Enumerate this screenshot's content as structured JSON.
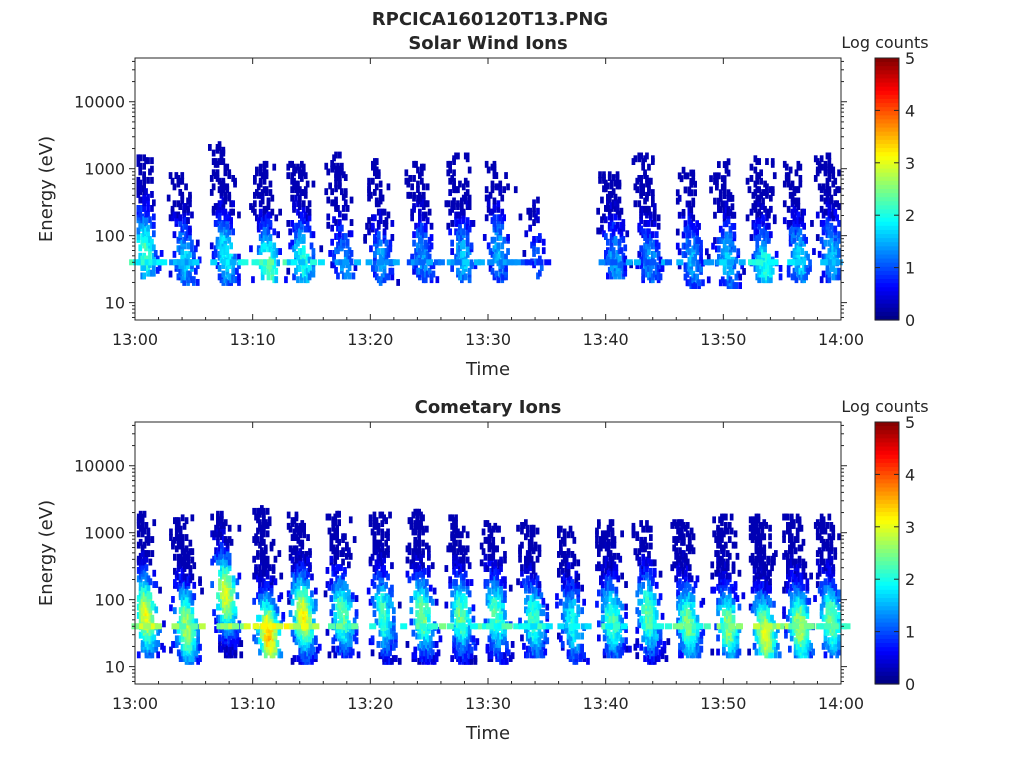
{
  "figure_title": "RPCICA160120T13.PNG",
  "chart_data": [
    {
      "type": "heatmap",
      "title": "Solar Wind Ions",
      "xlabel": "Time",
      "ylabel": "Energy (eV)",
      "y_scale": "log",
      "ylim": [
        5.5,
        45000
      ],
      "xlim": [
        "13:00",
        "14:00"
      ],
      "x_ticks": [
        "13:00",
        "13:10",
        "13:20",
        "13:30",
        "13:40",
        "13:50",
        "14:00"
      ],
      "y_ticks": [
        "10",
        "100",
        "1000",
        "10000"
      ],
      "colorbar": {
        "label": "Log counts",
        "range": [
          0,
          5
        ],
        "ticks": [
          "0",
          "1",
          "2",
          "3",
          "4",
          "5"
        ],
        "colormap": "jet"
      },
      "bursts": [
        {
          "t": 0.9,
          "e_low": 25,
          "e_high": 1500,
          "peak_e": 60,
          "peak_level": 2.2,
          "density": 0.55
        },
        {
          "t": 4.3,
          "e_low": 20,
          "e_high": 800,
          "peak_e": 45,
          "peak_level": 1.6,
          "density": 0.55
        },
        {
          "t": 7.8,
          "e_low": 20,
          "e_high": 2500,
          "peak_e": 55,
          "peak_level": 1.9,
          "density": 0.6
        },
        {
          "t": 11.3,
          "e_low": 22,
          "e_high": 1200,
          "peak_e": 35,
          "peak_level": 2.4,
          "density": 0.55
        },
        {
          "t": 14.3,
          "e_low": 22,
          "e_high": 1200,
          "peak_e": 45,
          "peak_level": 2.0,
          "density": 0.6
        },
        {
          "t": 17.7,
          "e_low": 25,
          "e_high": 1600,
          "peak_e": 40,
          "peak_level": 1.4,
          "density": 0.45
        },
        {
          "t": 21.0,
          "e_low": 20,
          "e_high": 1600,
          "peak_e": 40,
          "peak_level": 1.4,
          "density": 0.45
        },
        {
          "t": 24.5,
          "e_low": 22,
          "e_high": 1200,
          "peak_e": 50,
          "peak_level": 1.4,
          "density": 0.5
        },
        {
          "t": 27.9,
          "e_low": 22,
          "e_high": 1600,
          "peak_e": 45,
          "peak_level": 1.6,
          "density": 0.5
        },
        {
          "t": 31.0,
          "e_low": 20,
          "e_high": 1200,
          "peak_e": 60,
          "peak_level": 1.5,
          "density": 0.45
        },
        {
          "t": 34.2,
          "e_low": 25,
          "e_high": 500,
          "peak_e": 40,
          "peak_level": 1.0,
          "density": 0.2
        },
        {
          "t": 40.8,
          "e_low": 25,
          "e_high": 900,
          "peak_e": 45,
          "peak_level": 1.4,
          "density": 0.55
        },
        {
          "t": 43.8,
          "e_low": 22,
          "e_high": 1600,
          "peak_e": 40,
          "peak_level": 1.4,
          "density": 0.55
        },
        {
          "t": 47.4,
          "e_low": 18,
          "e_high": 1000,
          "peak_e": 45,
          "peak_level": 1.5,
          "density": 0.55
        },
        {
          "t": 50.4,
          "e_low": 18,
          "e_high": 1300,
          "peak_e": 45,
          "peak_level": 1.6,
          "density": 0.55
        },
        {
          "t": 53.5,
          "e_low": 22,
          "e_high": 1600,
          "peak_e": 35,
          "peak_level": 2.0,
          "density": 0.55
        },
        {
          "t": 56.5,
          "e_low": 22,
          "e_high": 1200,
          "peak_e": 45,
          "peak_level": 1.7,
          "density": 0.55
        },
        {
          "t": 59.3,
          "e_low": 22,
          "e_high": 1800,
          "peak_e": 50,
          "peak_level": 1.6,
          "density": 0.55
        }
      ]
    },
    {
      "type": "heatmap",
      "title": "Cometary Ions",
      "xlabel": "Time",
      "ylabel": "Energy (eV)",
      "y_scale": "log",
      "ylim": [
        5.5,
        45000
      ],
      "xlim": [
        "13:00",
        "14:00"
      ],
      "x_ticks": [
        "13:00",
        "13:10",
        "13:20",
        "13:30",
        "13:40",
        "13:50",
        "14:00"
      ],
      "y_ticks": [
        "10",
        "100",
        "1000",
        "10000"
      ],
      "colorbar": {
        "label": "Log counts",
        "range": [
          0,
          5
        ],
        "ticks": [
          "0",
          "1",
          "2",
          "3",
          "4",
          "5"
        ],
        "colormap": "jet"
      },
      "bursts": [
        {
          "t": 1.1,
          "e_low": 15,
          "e_high": 2000,
          "peak_e": 60,
          "peak_level": 3.0,
          "density": 0.85
        },
        {
          "t": 4.5,
          "e_low": 12,
          "e_high": 1700,
          "peak_e": 40,
          "peak_level": 2.8,
          "density": 0.85
        },
        {
          "t": 8.0,
          "e_low": 15,
          "e_high": 2000,
          "peak_e": 120,
          "peak_level": 3.0,
          "density": 0.85
        },
        {
          "t": 11.4,
          "e_low": 15,
          "e_high": 2500,
          "peak_e": 30,
          "peak_level": 3.4,
          "density": 0.8
        },
        {
          "t": 14.5,
          "e_low": 12,
          "e_high": 2000,
          "peak_e": 60,
          "peak_level": 3.1,
          "density": 0.85
        },
        {
          "t": 17.8,
          "e_low": 15,
          "e_high": 2000,
          "peak_e": 60,
          "peak_level": 2.4,
          "density": 0.75
        },
        {
          "t": 21.3,
          "e_low": 12,
          "e_high": 2000,
          "peak_e": 60,
          "peak_level": 2.2,
          "density": 0.75
        },
        {
          "t": 24.6,
          "e_low": 12,
          "e_high": 2200,
          "peak_e": 60,
          "peak_level": 2.5,
          "density": 0.75
        },
        {
          "t": 27.9,
          "e_low": 12,
          "e_high": 1800,
          "peak_e": 60,
          "peak_level": 2.4,
          "density": 0.75
        },
        {
          "t": 30.9,
          "e_low": 12,
          "e_high": 1500,
          "peak_e": 60,
          "peak_level": 2.3,
          "density": 0.7
        },
        {
          "t": 34.0,
          "e_low": 15,
          "e_high": 1500,
          "peak_e": 50,
          "peak_level": 2.2,
          "density": 0.7
        },
        {
          "t": 37.3,
          "e_low": 12,
          "e_high": 1200,
          "peak_e": 45,
          "peak_level": 2.0,
          "density": 0.6
        },
        {
          "t": 40.7,
          "e_low": 15,
          "e_high": 1500,
          "peak_e": 50,
          "peak_level": 2.3,
          "density": 0.75
        },
        {
          "t": 43.8,
          "e_low": 12,
          "e_high": 1500,
          "peak_e": 60,
          "peak_level": 2.4,
          "density": 0.75
        },
        {
          "t": 47.1,
          "e_low": 15,
          "e_high": 1500,
          "peak_e": 45,
          "peak_level": 2.5,
          "density": 0.75
        },
        {
          "t": 50.5,
          "e_low": 15,
          "e_high": 1800,
          "peak_e": 40,
          "peak_level": 2.6,
          "density": 0.75
        },
        {
          "t": 53.6,
          "e_low": 15,
          "e_high": 1800,
          "peak_e": 30,
          "peak_level": 3.0,
          "density": 0.8
        },
        {
          "t": 56.6,
          "e_low": 15,
          "e_high": 1800,
          "peak_e": 40,
          "peak_level": 2.8,
          "density": 0.8
        },
        {
          "t": 59.3,
          "e_low": 15,
          "e_high": 1800,
          "peak_e": 50,
          "peak_level": 2.5,
          "density": 0.8
        }
      ]
    }
  ]
}
